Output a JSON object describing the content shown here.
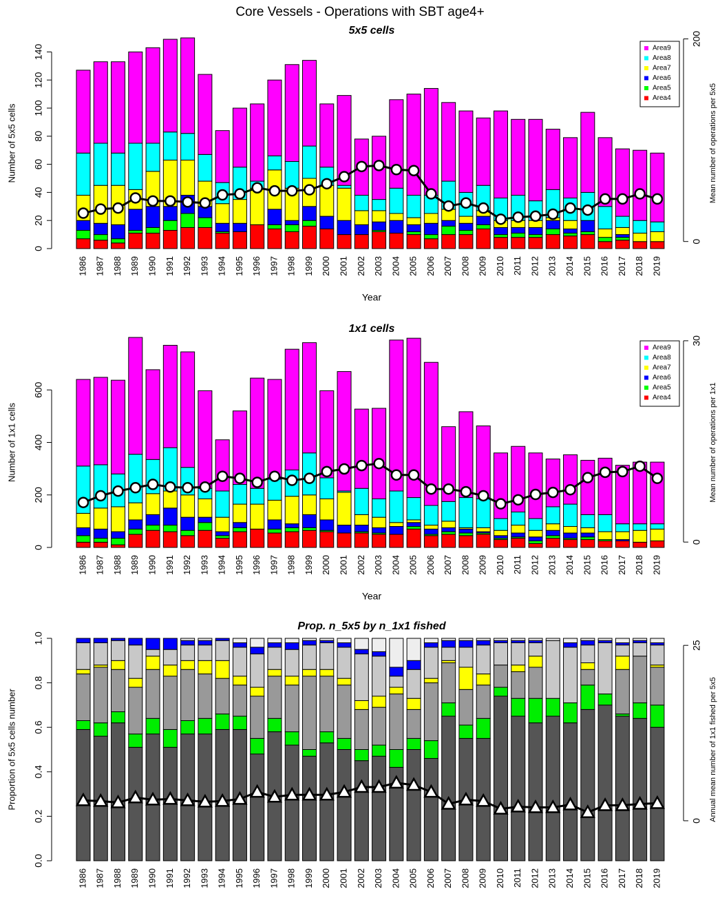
{
  "title": "Core Vessels - Operations with SBT age4+",
  "chart_data": [
    {
      "type": "bar",
      "stacked": true,
      "title": "5x5 cells",
      "x_label": "Year",
      "y_label": "Number of 5x5 cells",
      "y2_label": "Mean number of operations per 5x5",
      "legend": "topright",
      "categories": [
        "1986",
        "1987",
        "1988",
        "1989",
        "1990",
        "1991",
        "1992",
        "1993",
        "1994",
        "1995",
        "1996",
        "1997",
        "1998",
        "1999",
        "2000",
        "2001",
        "2002",
        "2003",
        "2004",
        "2005",
        "2006",
        "2007",
        "2008",
        "2009",
        "2010",
        "2011",
        "2012",
        "2013",
        "2014",
        "2015",
        "2016",
        "2017",
        "2018",
        "2019"
      ],
      "ylim": [
        0,
        150
      ],
      "yticks": [
        0,
        20,
        40,
        60,
        80,
        100,
        120,
        140
      ],
      "y2lim": [
        -7,
        201
      ],
      "y2ticks": [
        0,
        200
      ],
      "series": [
        {
          "name": "Area4",
          "color": "#ff0000",
          "values": [
            7,
            6,
            4,
            11,
            11,
            13,
            15,
            15,
            11,
            12,
            17,
            14,
            12,
            16,
            14,
            10,
            10,
            12,
            11,
            10,
            7,
            10,
            10,
            14,
            8,
            8,
            8,
            10,
            9,
            10,
            5,
            6,
            5,
            5
          ]
        },
        {
          "name": "Area5",
          "color": "#00ff00",
          "values": [
            6,
            4,
            3,
            2,
            4,
            7,
            10,
            7,
            1,
            0,
            0,
            3,
            5,
            4,
            0,
            0,
            0,
            1,
            0,
            2,
            3,
            6,
            3,
            3,
            2,
            3,
            2,
            4,
            2,
            2,
            3,
            2,
            0,
            0
          ]
        },
        {
          "name": "Area6",
          "color": "#0000ff",
          "values": [
            7,
            8,
            10,
            15,
            15,
            10,
            13,
            8,
            6,
            6,
            0,
            11,
            3,
            10,
            9,
            10,
            7,
            6,
            9,
            5,
            8,
            4,
            5,
            6,
            5,
            4,
            5,
            6,
            3,
            8,
            0,
            2,
            0,
            0
          ]
        },
        {
          "name": "Area7",
          "color": "#ffff00",
          "values": [
            18,
            27,
            28,
            14,
            25,
            33,
            25,
            18,
            14,
            17,
            26,
            28,
            23,
            20,
            22,
            23,
            10,
            8,
            5,
            5,
            7,
            8,
            5,
            4,
            5,
            5,
            5,
            2,
            6,
            0,
            6,
            5,
            6,
            7
          ]
        },
        {
          "name": "Area8",
          "color": "#00ffff",
          "values": [
            30,
            30,
            23,
            33,
            20,
            20,
            19,
            19,
            15,
            23,
            5,
            10,
            19,
            23,
            13,
            2,
            11,
            8,
            18,
            16,
            13,
            20,
            17,
            18,
            16,
            18,
            14,
            20,
            16,
            20,
            16,
            8,
            9,
            7
          ]
        },
        {
          "name": "Area9",
          "color": "#ff00ff",
          "values": [
            59,
            58,
            65,
            65,
            68,
            66,
            68,
            57,
            37,
            42,
            55,
            54,
            69,
            61,
            45,
            64,
            40,
            45,
            63,
            72,
            76,
            56,
            58,
            48,
            62,
            54,
            58,
            43,
            43,
            57,
            49,
            48,
            50,
            49
          ]
        },
        {
          "type": "line",
          "axis": "y2",
          "marker": "circle",
          "color": "#000000",
          "values": [
            28,
            32,
            33,
            43,
            40,
            40,
            39,
            38,
            46,
            47,
            53,
            50,
            50,
            51,
            57,
            64,
            74,
            75,
            71,
            70,
            47,
            35,
            38,
            33,
            22,
            24,
            25,
            27,
            33,
            31,
            42,
            42,
            47,
            42
          ]
        }
      ]
    },
    {
      "type": "bar",
      "stacked": true,
      "title": "1x1 cells",
      "x_label": "Year",
      "y_label": "Number of 1x1 cells",
      "y2_label": "Mean number of operations per 1x1",
      "legend": "topright",
      "categories": [
        "1986",
        "1987",
        "1988",
        "1989",
        "1990",
        "1991",
        "1992",
        "1993",
        "1994",
        "1995",
        "1996",
        "1997",
        "1998",
        "1999",
        "2000",
        "2001",
        "2002",
        "2003",
        "2004",
        "2005",
        "2006",
        "2007",
        "2008",
        "2009",
        "2010",
        "2011",
        "2012",
        "2013",
        "2014",
        "2015",
        "2016",
        "2017",
        "2018",
        "2019"
      ],
      "ylim": [
        0,
        800
      ],
      "yticks": [
        0,
        200,
        400,
        600
      ],
      "y2lim": [
        -0.8,
        30.5
      ],
      "y2ticks": [
        0,
        30
      ],
      "series": [
        {
          "name": "Area4",
          "color": "#ff0000",
          "values": [
            20,
            20,
            10,
            50,
            65,
            60,
            45,
            65,
            35,
            60,
            70,
            55,
            60,
            65,
            60,
            55,
            55,
            50,
            50,
            70,
            45,
            50,
            45,
            50,
            30,
            35,
            15,
            35,
            30,
            30,
            25,
            25,
            20,
            25
          ]
        },
        {
          "name": "Area5",
          "color": "#00ff00",
          "values": [
            25,
            15,
            25,
            20,
            20,
            25,
            20,
            30,
            10,
            15,
            0,
            15,
            15,
            10,
            5,
            0,
            5,
            5,
            0,
            10,
            5,
            10,
            10,
            5,
            5,
            5,
            10,
            10,
            5,
            10,
            5,
            0,
            0,
            0
          ]
        },
        {
          "name": "Area6",
          "color": "#0000ff",
          "values": [
            30,
            35,
            25,
            35,
            40,
            65,
            50,
            20,
            15,
            20,
            0,
            35,
            15,
            50,
            40,
            30,
            25,
            20,
            30,
            15,
            20,
            15,
            15,
            5,
            10,
            15,
            15,
            20,
            20,
            15,
            0,
            5,
            0,
            0
          ]
        },
        {
          "name": "Area7",
          "color": "#ffff00",
          "values": [
            55,
            80,
            95,
            65,
            80,
            65,
            85,
            70,
            55,
            70,
            95,
            75,
            105,
            75,
            80,
            125,
            40,
            40,
            15,
            10,
            15,
            25,
            5,
            15,
            20,
            30,
            25,
            25,
            25,
            20,
            30,
            30,
            45,
            45
          ]
        },
        {
          "name": "Area8",
          "color": "#00ffff",
          "values": [
            180,
            165,
            125,
            185,
            130,
            165,
            105,
            40,
            100,
            75,
            60,
            80,
            100,
            160,
            80,
            5,
            100,
            70,
            120,
            85,
            75,
            75,
            115,
            110,
            45,
            50,
            45,
            65,
            85,
            50,
            65,
            30,
            25,
            20
          ]
        },
        {
          "name": "Area9",
          "color": "#ff00ff",
          "values": [
            330,
            333,
            357,
            445,
            342,
            390,
            440,
            372,
            195,
            280,
            420,
            380,
            460,
            420,
            332,
            455,
            302,
            345,
            575,
            607,
            545,
            285,
            327,
            278,
            250,
            250,
            250,
            182,
            188,
            207,
            215,
            223,
            235,
            235
          ]
        },
        {
          "type": "line",
          "axis": "y2",
          "marker": "circle",
          "color": "#000000",
          "values": [
            5.9,
            6.9,
            7.6,
            8.1,
            8.6,
            8.2,
            8.1,
            8.2,
            9.8,
            9.5,
            8.9,
            9.8,
            9.2,
            9.5,
            10.5,
            10.9,
            11.4,
            11.7,
            10.0,
            10.0,
            7.9,
            7.9,
            7.5,
            6.9,
            5.7,
            6.3,
            7.1,
            7.4,
            7.8,
            9.6,
            10.4,
            10.5,
            11.3,
            9.5
          ]
        }
      ]
    },
    {
      "type": "bar",
      "stacked": true,
      "title": "Prop. n_5x5 by n_1x1 fished",
      "x_label": "Year",
      "y_label": "Proportion of 5x5 cells number",
      "y2_label": "Annual mean number of 1x1 fished per 5x5",
      "categories": [
        "1986",
        "1987",
        "1988",
        "1989",
        "1990",
        "1991",
        "1992",
        "1993",
        "1994",
        "1995",
        "1996",
        "1997",
        "1998",
        "1999",
        "2000",
        "2001",
        "2002",
        "2003",
        "2004",
        "2005",
        "2006",
        "2007",
        "2008",
        "2009",
        "2010",
        "2011",
        "2012",
        "2013",
        "2014",
        "2015",
        "2016",
        "2017",
        "2018",
        "2019"
      ],
      "ylim": [
        0,
        1
      ],
      "yticks": [
        {
          "value": 0,
          "label": "0.0"
        },
        0.2,
        0.4,
        0.6,
        0.8,
        {
          "value": 1,
          "label": "1.0"
        }
      ],
      "y2lim": [
        -5.7,
        26
      ],
      "y2ticks": [
        0,
        25
      ],
      "series": [
        {
          "color": "#555555",
          "values": [
            0.59,
            0.56,
            0.62,
            0.51,
            0.57,
            0.51,
            0.57,
            0.57,
            0.59,
            0.59,
            0.48,
            0.58,
            0.52,
            0.47,
            0.53,
            0.5,
            0.45,
            0.47,
            0.42,
            0.5,
            0.46,
            0.65,
            0.55,
            0.55,
            0.74,
            0.65,
            0.62,
            0.65,
            0.62,
            0.68,
            0.7,
            0.65,
            0.64,
            0.6
          ]
        },
        {
          "color": "#00ee00",
          "values": [
            0.04,
            0.06,
            0.05,
            0.06,
            0.07,
            0.08,
            0.06,
            0.07,
            0.07,
            0.06,
            0.07,
            0.06,
            0.06,
            0.03,
            0.05,
            0.05,
            0.05,
            0.05,
            0.08,
            0.05,
            0.08,
            0.06,
            0.06,
            0.09,
            0.04,
            0.08,
            0.11,
            0.08,
            0.09,
            0.11,
            0.05,
            0.01,
            0.07,
            0.1
          ]
        },
        {
          "color": "#999999",
          "values": [
            0.21,
            0.25,
            0.19,
            0.21,
            0.22,
            0.24,
            0.23,
            0.2,
            0.16,
            0.14,
            0.19,
            0.19,
            0.21,
            0.33,
            0.25,
            0.24,
            0.18,
            0.17,
            0.25,
            0.13,
            0.26,
            0.18,
            0.16,
            0.15,
            0.1,
            0.12,
            0.14,
            0,
            0,
            0.07,
            0,
            0.2,
            0.21,
            0.17
          ]
        },
        {
          "color": "#ffff00",
          "values": [
            0.02,
            0.01,
            0.04,
            0.04,
            0.06,
            0.05,
            0.04,
            0.06,
            0.08,
            0.04,
            0.04,
            0.03,
            0.04,
            0.03,
            0.03,
            0.03,
            0.04,
            0.05,
            0.03,
            0.05,
            0.02,
            0.01,
            0.1,
            0.05,
            0,
            0.03,
            0.05,
            0,
            0,
            0.03,
            0,
            0.06,
            0,
            0.01
          ]
        },
        {
          "color": "#c8c8c8",
          "values": [
            0.12,
            0.1,
            0.09,
            0.15,
            0.03,
            0.07,
            0.07,
            0.07,
            0.09,
            0.13,
            0.15,
            0.1,
            0.12,
            0.11,
            0.12,
            0.14,
            0.21,
            0.18,
            0.05,
            0.13,
            0.14,
            0.06,
            0.09,
            0.13,
            0.1,
            0.1,
            0.06,
            0.26,
            0.25,
            0.08,
            0.23,
            0.05,
            0.06,
            0.09
          ]
        },
        {
          "color": "#0000ff",
          "values": [
            0.02,
            0.02,
            0.01,
            0.03,
            0.05,
            0.05,
            0.02,
            0.02,
            0.01,
            0.02,
            0.03,
            0.02,
            0.03,
            0.02,
            0.01,
            0.02,
            0.02,
            0.02,
            0.04,
            0.04,
            0.02,
            0.03,
            0.03,
            0.02,
            0.01,
            0.01,
            0.01,
            0,
            0.02,
            0.02,
            0.01,
            0.01,
            0.01,
            0.01
          ]
        },
        {
          "color": "#eeeeee",
          "values": [
            0,
            0,
            0,
            0,
            0,
            0,
            0.01,
            0.01,
            0,
            0.02,
            0.04,
            0.02,
            0.02,
            0.01,
            0.01,
            0.02,
            0.05,
            0.06,
            0.13,
            0.1,
            0.02,
            0.01,
            0.01,
            0.01,
            0.01,
            0.01,
            0.01,
            0.01,
            0.02,
            0.01,
            0.01,
            0.02,
            0.01,
            0.02
          ]
        },
        {
          "type": "line",
          "axis": "y2",
          "marker": "triangle",
          "color": "#000000",
          "values": [
            2.9,
            2.8,
            2.6,
            3.3,
            3.0,
            3.1,
            2.9,
            2.7,
            2.8,
            3.1,
            4.1,
            3.4,
            3.7,
            3.7,
            3.7,
            4.1,
            4.8,
            4.8,
            5.4,
            5.1,
            4.1,
            2.4,
            3.0,
            2.8,
            1.7,
            2.0,
            1.9,
            1.9,
            2.3,
            1.2,
            2.2,
            2.2,
            2.4,
            2.5
          ]
        }
      ]
    }
  ]
}
